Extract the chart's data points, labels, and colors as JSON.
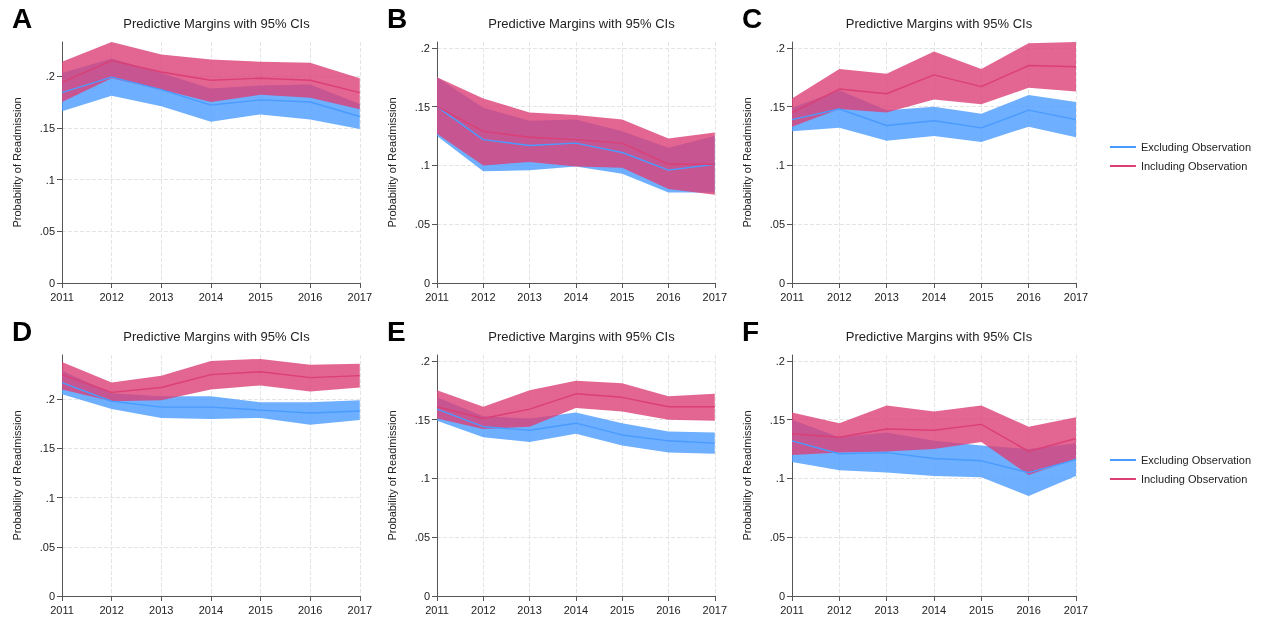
{
  "chart_data": [
    {
      "type": "line",
      "title": "Predictive Margins with 95% CIs",
      "ylabel": "Probability of Readmission",
      "annotations": [
        "A"
      ],
      "categories": [
        "2011",
        "2012",
        "2013",
        "2014",
        "2015",
        "2016",
        "2017"
      ],
      "ylim": [
        0,
        0.233
      ],
      "yticks": [
        {
          "value": 0,
          "label": "0"
        },
        {
          "value": 0.05,
          "label": ".05"
        },
        {
          "value": 0.1,
          "label": ".1"
        },
        {
          "value": 0.15,
          "label": ".15"
        },
        {
          "value": 0.2,
          "label": ".2"
        }
      ],
      "grid": true,
      "legend": false,
      "series": [
        {
          "color": "#4a9bff",
          "values": [
            0.184,
            0.199,
            0.187,
            0.172,
            0.177,
            0.175,
            0.161
          ],
          "lower": [
            0.166,
            0.181,
            0.171,
            0.156,
            0.163,
            0.158,
            0.149
          ],
          "upper": [
            0.203,
            0.217,
            0.203,
            0.188,
            0.191,
            0.192,
            0.173
          ]
        },
        {
          "color": "#dc3f75",
          "values": [
            0.194,
            0.215,
            0.204,
            0.196,
            0.198,
            0.196,
            0.184
          ],
          "lower": [
            0.175,
            0.198,
            0.187,
            0.175,
            0.182,
            0.179,
            0.168
          ],
          "upper": [
            0.214,
            0.233,
            0.221,
            0.216,
            0.214,
            0.213,
            0.198
          ]
        }
      ]
    },
    {
      "type": "line",
      "title": "Predictive Margins with 95% CIs",
      "ylabel": "Probability of Readmission",
      "annotations": [
        "B"
      ],
      "categories": [
        "2011",
        "2012",
        "2013",
        "2014",
        "2015",
        "2016",
        "2017"
      ],
      "ylim": [
        0,
        0.205
      ],
      "yticks": [
        {
          "value": 0,
          "label": "0"
        },
        {
          "value": 0.05,
          "label": ".05"
        },
        {
          "value": 0.1,
          "label": ".1"
        },
        {
          "value": 0.15,
          "label": ".15"
        },
        {
          "value": 0.2,
          "label": ".2"
        }
      ],
      "grid": true,
      "legend": false,
      "series": [
        {
          "color": "#4a9bff",
          "values": [
            0.15,
            0.122,
            0.117,
            0.119,
            0.111,
            0.096,
            0.101
          ],
          "lower": [
            0.125,
            0.095,
            0.096,
            0.099,
            0.093,
            0.077,
            0.077
          ],
          "upper": [
            0.175,
            0.149,
            0.138,
            0.139,
            0.129,
            0.115,
            0.125
          ]
        },
        {
          "color": "#dc3f75",
          "values": [
            0.15,
            0.129,
            0.124,
            0.122,
            0.119,
            0.101,
            0.101
          ],
          "lower": [
            0.127,
            0.1,
            0.103,
            0.099,
            0.098,
            0.08,
            0.075
          ],
          "upper": [
            0.175,
            0.157,
            0.145,
            0.143,
            0.139,
            0.123,
            0.128
          ]
        }
      ]
    },
    {
      "type": "line",
      "title": "Predictive Margins with 95% CIs",
      "ylabel": "Probability of Readmission",
      "annotations": [
        "C"
      ],
      "categories": [
        "2011",
        "2012",
        "2013",
        "2014",
        "2015",
        "2016",
        "2017"
      ],
      "ylim": [
        0,
        0.205
      ],
      "yticks": [
        {
          "value": 0,
          "label": "0"
        },
        {
          "value": 0.05,
          "label": ".05"
        },
        {
          "value": 0.1,
          "label": ".1"
        },
        {
          "value": 0.15,
          "label": ".15"
        },
        {
          "value": 0.2,
          "label": ".2"
        }
      ],
      "grid": true,
      "legend": "right",
      "series": [
        {
          "name": "Excluding Observation",
          "color": "#4a9bff",
          "values": [
            0.139,
            0.148,
            0.134,
            0.138,
            0.132,
            0.147,
            0.139
          ],
          "lower": [
            0.129,
            0.132,
            0.121,
            0.125,
            0.12,
            0.133,
            0.124
          ],
          "upper": [
            0.149,
            0.164,
            0.147,
            0.15,
            0.144,
            0.16,
            0.154
          ]
        },
        {
          "name": "Including Observation",
          "color": "#dc3f75",
          "values": [
            0.145,
            0.165,
            0.161,
            0.177,
            0.167,
            0.185,
            0.184
          ],
          "lower": [
            0.133,
            0.148,
            0.145,
            0.156,
            0.152,
            0.166,
            0.163
          ],
          "upper": [
            0.157,
            0.182,
            0.178,
            0.197,
            0.182,
            0.204,
            0.205
          ]
        }
      ]
    },
    {
      "type": "line",
      "title": "Predictive Margins with 95% CIs",
      "ylabel": "Probability of Readmission",
      "annotations": [
        "D"
      ],
      "categories": [
        "2011",
        "2012",
        "2013",
        "2014",
        "2015",
        "2016",
        "2017"
      ],
      "ylim": [
        0,
        0.245
      ],
      "yticks": [
        {
          "value": 0,
          "label": "0"
        },
        {
          "value": 0.05,
          "label": ".05"
        },
        {
          "value": 0.1,
          "label": ".1"
        },
        {
          "value": 0.15,
          "label": ".15"
        },
        {
          "value": 0.2,
          "label": ".2"
        }
      ],
      "grid": true,
      "legend": false,
      "series": [
        {
          "color": "#4a9bff",
          "values": [
            0.217,
            0.198,
            0.192,
            0.192,
            0.189,
            0.186,
            0.188
          ],
          "lower": [
            0.205,
            0.19,
            0.181,
            0.18,
            0.181,
            0.174,
            0.179
          ],
          "upper": [
            0.229,
            0.206,
            0.203,
            0.203,
            0.197,
            0.197,
            0.199
          ]
        },
        {
          "color": "#dc3f75",
          "values": [
            0.225,
            0.207,
            0.212,
            0.225,
            0.228,
            0.222,
            0.224
          ],
          "lower": [
            0.21,
            0.198,
            0.199,
            0.21,
            0.214,
            0.208,
            0.212
          ],
          "upper": [
            0.238,
            0.217,
            0.224,
            0.239,
            0.241,
            0.235,
            0.236
          ]
        }
      ]
    },
    {
      "type": "line",
      "title": "Predictive Margins with 95% CIs",
      "ylabel": "Probability of Readmission",
      "annotations": [
        "E"
      ],
      "categories": [
        "2011",
        "2012",
        "2013",
        "2014",
        "2015",
        "2016",
        "2017"
      ],
      "ylim": [
        0,
        0.205
      ],
      "yticks": [
        {
          "value": 0,
          "label": "0"
        },
        {
          "value": 0.05,
          "label": ".05"
        },
        {
          "value": 0.1,
          "label": ".1"
        },
        {
          "value": 0.15,
          "label": ".15"
        },
        {
          "value": 0.2,
          "label": ".2"
        }
      ],
      "grid": true,
      "legend": false,
      "series": [
        {
          "color": "#4a9bff",
          "values": [
            0.159,
            0.144,
            0.141,
            0.147,
            0.137,
            0.132,
            0.13
          ],
          "lower": [
            0.149,
            0.135,
            0.131,
            0.138,
            0.128,
            0.122,
            0.121
          ],
          "upper": [
            0.169,
            0.153,
            0.151,
            0.156,
            0.147,
            0.14,
            0.139
          ]
        },
        {
          "color": "#dc3f75",
          "values": [
            0.161,
            0.151,
            0.159,
            0.172,
            0.169,
            0.161,
            0.161
          ],
          "lower": [
            0.151,
            0.142,
            0.144,
            0.16,
            0.157,
            0.15,
            0.149
          ],
          "upper": [
            0.175,
            0.161,
            0.175,
            0.183,
            0.181,
            0.17,
            0.172
          ]
        }
      ]
    },
    {
      "type": "line",
      "title": "Predictive Margins with 95% CIs",
      "ylabel": "Probability of Readmission",
      "annotations": [
        "F"
      ],
      "categories": [
        "2011",
        "2012",
        "2013",
        "2014",
        "2015",
        "2016",
        "2017"
      ],
      "ylim": [
        0,
        0.205
      ],
      "yticks": [
        {
          "value": 0,
          "label": "0"
        },
        {
          "value": 0.05,
          "label": ".05"
        },
        {
          "value": 0.1,
          "label": ".1"
        },
        {
          "value": 0.15,
          "label": ".15"
        },
        {
          "value": 0.2,
          "label": ".2"
        }
      ],
      "grid": true,
      "legend": "right",
      "series": [
        {
          "name": "Excluding Observation",
          "color": "#4a9bff",
          "values": [
            0.132,
            0.121,
            0.122,
            0.117,
            0.115,
            0.105,
            0.116
          ],
          "lower": [
            0.114,
            0.107,
            0.105,
            0.102,
            0.101,
            0.085,
            0.102
          ],
          "upper": [
            0.15,
            0.135,
            0.139,
            0.132,
            0.128,
            0.125,
            0.13
          ]
        },
        {
          "name": "Including Observation",
          "color": "#dc3f75",
          "values": [
            0.138,
            0.135,
            0.142,
            0.141,
            0.146,
            0.123,
            0.134
          ],
          "lower": [
            0.12,
            0.122,
            0.123,
            0.125,
            0.131,
            0.103,
            0.117
          ],
          "upper": [
            0.156,
            0.147,
            0.162,
            0.157,
            0.162,
            0.144,
            0.152
          ]
        }
      ]
    }
  ]
}
